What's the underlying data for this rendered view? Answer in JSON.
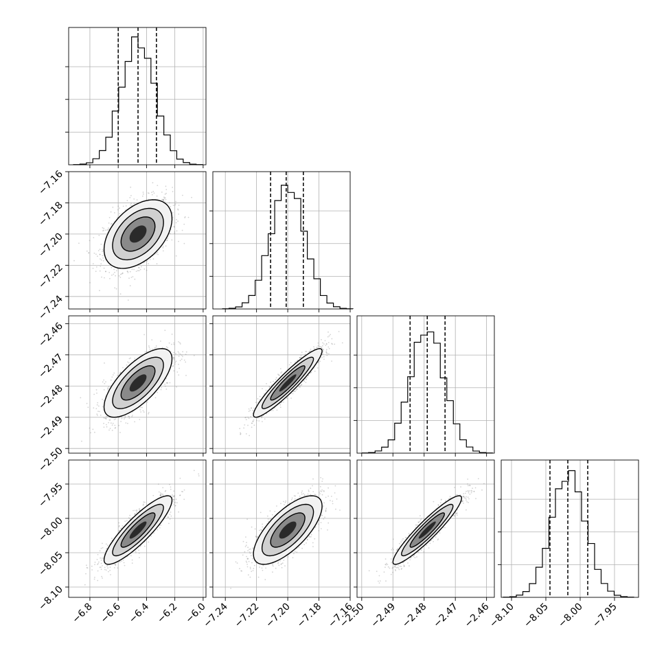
{
  "colors": {
    "line": "#000000",
    "grid": "#b0b0b0",
    "sample": "#808080",
    "background": "#ffffff"
  },
  "chart_data": {
    "type": "corner",
    "parameters": 4,
    "grid": true,
    "params": [
      {
        "range": [
          -6.95,
          -5.98
        ],
        "ticks": [
          -6.8,
          -6.6,
          -6.4,
          -6.2,
          -6.0
        ],
        "tick_labels": [
          "−6.8",
          "−6.6",
          "−6.4",
          "−6.2",
          "−6.0"
        ],
        "mean": -6.46,
        "sigma": 0.12,
        "quantiles": [
          -6.6,
          -6.46,
          -6.33
        ],
        "hist_max": 0.105
      },
      {
        "range": [
          -7.248,
          -7.16
        ],
        "ticks": [
          -7.24,
          -7.22,
          -7.2,
          -7.18,
          -7.16
        ],
        "tick_labels": [
          "−7.24",
          "−7.22",
          "−7.20",
          "−7.18",
          "−7.16"
        ],
        "mean": -7.2,
        "sigma": 0.011,
        "quantiles": [
          -7.211,
          -7.201,
          -7.19
        ],
        "hist_max": 0.105
      },
      {
        "range": [
          -2.5015,
          -2.4575
        ],
        "ticks": [
          -2.5,
          -2.49,
          -2.48,
          -2.47,
          -2.46
        ],
        "tick_labels": [
          "−2.50",
          "−2.49",
          "−2.48",
          "−2.47",
          "−2.46"
        ],
        "mean": -2.479,
        "sigma": 0.0055,
        "quantiles": [
          -2.4845,
          -2.479,
          -2.4733
        ],
        "hist_max": 0.105
      },
      {
        "range": [
          -8.115,
          -7.915
        ],
        "ticks": [
          -8.1,
          -8.05,
          -8.0,
          -7.95
        ],
        "tick_labels": [
          "−8.10",
          "−8.05",
          "−8.00",
          "−7.95"
        ],
        "mean": -8.017,
        "sigma": 0.025,
        "quantiles": [
          -8.044,
          -8.018,
          -7.989
        ],
        "hist_max": 0.105
      }
    ],
    "correlations": [
      {
        "pair": [
          0,
          1
        ],
        "rho": 0.45
      },
      {
        "pair": [
          0,
          2
        ],
        "rho": 0.7
      },
      {
        "pair": [
          1,
          2
        ],
        "rho": 0.93
      },
      {
        "pair": [
          0,
          3
        ],
        "rho": 0.87
      },
      {
        "pair": [
          1,
          3
        ],
        "rho": 0.7
      },
      {
        "pair": [
          2,
          3
        ],
        "rho": 0.93
      }
    ],
    "contour_sigma_levels": [
      0.5,
      1.0,
      1.5,
      2.0
    ],
    "histogram_bins": 20
  }
}
